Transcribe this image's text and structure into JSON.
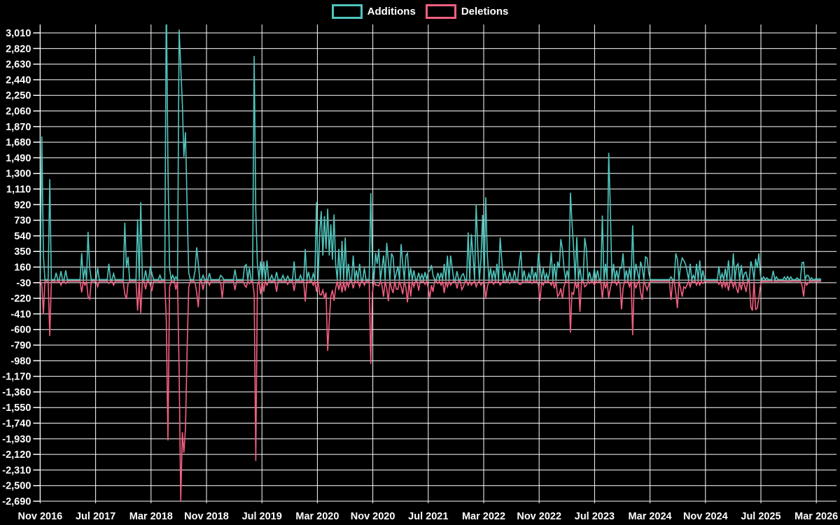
{
  "chart_data": {
    "type": "line",
    "title": "",
    "xlabel": "",
    "ylabel": "",
    "grid": true,
    "background_color": "#000000",
    "grid_color": "#ffffff",
    "zero_line_color": "#9aa5a3",
    "legend_position": "top-center",
    "legend": [
      {
        "label": "Additions",
        "color": "#4FC4BC"
      },
      {
        "label": "Deletions",
        "color": "#F25F80"
      }
    ],
    "ylim": [
      -2690,
      3010
    ],
    "y_tick_step": 190,
    "y_ticks": [
      3010,
      2820,
      2630,
      2440,
      2250,
      2060,
      1870,
      1680,
      1490,
      1300,
      1110,
      920,
      730,
      540,
      350,
      160,
      -30,
      -220,
      -410,
      -600,
      -790,
      -980,
      -1170,
      -1360,
      -1550,
      -1740,
      -1930,
      -2120,
      -2310,
      -2500,
      -2690
    ],
    "x_tick_labels": [
      "Nov 2016",
      "Jul 2017",
      "Mar 2018",
      "Nov 2018",
      "Jul 2019",
      "Mar 2020",
      "Nov 2020",
      "Jul 2021",
      "Mar 2022",
      "Nov 2022",
      "Jul 2023",
      "Mar 2024",
      "Nov 2024",
      "Jul 2025",
      "Mar 2026"
    ],
    "series_unit": "weeks",
    "series": {
      "n_weeks": 490,
      "baseline": {
        "additions": 8,
        "deletions": -12
      },
      "events": [
        [
          1,
          1750,
          -60
        ],
        [
          2,
          300,
          -410
        ],
        [
          6,
          1230,
          -680
        ],
        [
          10,
          90,
          -30
        ],
        [
          13,
          110,
          -60
        ],
        [
          16,
          120,
          -40
        ],
        [
          26,
          330,
          -150
        ],
        [
          28,
          150,
          -60
        ],
        [
          30,
          590,
          -200
        ],
        [
          31,
          150,
          -230
        ],
        [
          36,
          150,
          -80
        ],
        [
          43,
          200,
          -40
        ],
        [
          46,
          80,
          -60
        ],
        [
          53,
          700,
          -170
        ],
        [
          54,
          150,
          -230
        ],
        [
          55,
          285,
          -40
        ],
        [
          61,
          740,
          -370
        ],
        [
          63,
          950,
          -400
        ],
        [
          66,
          120,
          -110
        ],
        [
          69,
          170,
          -60
        ],
        [
          70,
          80,
          -130
        ],
        [
          75,
          60,
          -20
        ],
        [
          79,
          3500,
          -500
        ],
        [
          80,
          1400,
          -1950
        ],
        [
          81,
          150,
          -85
        ],
        [
          83,
          60,
          -25
        ],
        [
          85,
          40,
          -115
        ],
        [
          87,
          3050,
          -1100
        ],
        [
          88,
          2600,
          -2690
        ],
        [
          89,
          2150,
          -1850
        ],
        [
          90,
          1500,
          -2100
        ],
        [
          91,
          1800,
          -1800
        ],
        [
          92,
          900,
          -850
        ],
        [
          93,
          90,
          -85
        ],
        [
          97,
          115,
          -30
        ],
        [
          98,
          400,
          -150
        ],
        [
          99,
          200,
          -330
        ],
        [
          102,
          60,
          -115
        ],
        [
          106,
          85,
          -60
        ],
        [
          113,
          60,
          -25
        ],
        [
          114,
          40,
          -220
        ],
        [
          122,
          130,
          -120
        ],
        [
          128,
          170,
          -60
        ],
        [
          129,
          190,
          -85
        ],
        [
          131,
          150,
          -40
        ],
        [
          134,
          2730,
          -170
        ],
        [
          135,
          850,
          -2200
        ],
        [
          136,
          200,
          -60
        ],
        [
          138,
          230,
          -170
        ],
        [
          140,
          230,
          -140
        ],
        [
          142,
          240,
          -60
        ],
        [
          145,
          60,
          -20
        ],
        [
          148,
          100,
          -140
        ],
        [
          152,
          60,
          -25
        ],
        [
          155,
          50,
          -50
        ],
        [
          159,
          230,
          -130
        ],
        [
          163,
          60,
          -25
        ],
        [
          166,
          380,
          -260
        ],
        [
          168,
          100,
          -30
        ],
        [
          171,
          80,
          -60
        ],
        [
          173,
          950,
          -140
        ],
        [
          175,
          560,
          -170
        ],
        [
          176,
          840,
          -180
        ],
        [
          177,
          300,
          -120
        ],
        [
          178,
          780,
          -220
        ],
        [
          179,
          380,
          -150
        ],
        [
          180,
          870,
          -860
        ],
        [
          181,
          300,
          -500
        ],
        [
          182,
          680,
          -200
        ],
        [
          183,
          250,
          -120
        ],
        [
          184,
          800,
          -250
        ],
        [
          185,
          200,
          -100
        ],
        [
          187,
          380,
          -120
        ],
        [
          189,
          480,
          -150
        ],
        [
          191,
          520,
          -130
        ],
        [
          193,
          200,
          -80
        ],
        [
          196,
          300,
          -100
        ],
        [
          198,
          120,
          -30
        ],
        [
          200,
          200,
          -80
        ],
        [
          203,
          150,
          -60
        ],
        [
          207,
          1060,
          -1020
        ],
        [
          208,
          200,
          -150
        ],
        [
          210,
          330,
          -60
        ],
        [
          211,
          200,
          -60
        ],
        [
          212,
          380,
          -70
        ],
        [
          214,
          140,
          -60
        ],
        [
          215,
          300,
          -200
        ],
        [
          217,
          455,
          -100
        ],
        [
          218,
          230,
          -256
        ],
        [
          220,
          327,
          -100
        ],
        [
          221,
          284,
          -156
        ],
        [
          223,
          85,
          -110
        ],
        [
          224,
          170,
          -110
        ],
        [
          226,
          440,
          -80
        ],
        [
          227,
          200,
          -170
        ],
        [
          229,
          300,
          -90
        ],
        [
          230,
          327,
          -270
        ],
        [
          232,
          150,
          -200
        ],
        [
          234,
          120,
          -80
        ],
        [
          237,
          90,
          -128
        ],
        [
          239,
          70,
          -20
        ],
        [
          241,
          100,
          -50
        ],
        [
          243,
          100,
          -100
        ],
        [
          244,
          120,
          -213
        ],
        [
          245,
          185,
          -60
        ],
        [
          246,
          60,
          -142
        ],
        [
          249,
          90,
          -40
        ],
        [
          251,
          90,
          -60
        ],
        [
          253,
          199,
          -156
        ],
        [
          255,
          298,
          -80
        ],
        [
          257,
          300,
          -60
        ],
        [
          258,
          150,
          -30
        ],
        [
          261,
          110,
          -100
        ],
        [
          264,
          60,
          -115
        ],
        [
          265,
          80,
          -80
        ],
        [
          268,
          582,
          -60
        ],
        [
          270,
          560,
          -60
        ],
        [
          271,
          300,
          -30
        ],
        [
          273,
          920,
          -80
        ],
        [
          274,
          400,
          -30
        ],
        [
          276,
          250,
          -60
        ],
        [
          277,
          795,
          -30
        ],
        [
          279,
          1010,
          -230
        ],
        [
          280,
          300,
          -80
        ],
        [
          282,
          150,
          -30
        ],
        [
          284,
          120,
          -50
        ],
        [
          286,
          200,
          -30
        ],
        [
          288,
          520,
          -60
        ],
        [
          289,
          250,
          -30
        ],
        [
          291,
          120,
          -25
        ],
        [
          294,
          100,
          -40
        ],
        [
          297,
          120,
          -25
        ],
        [
          300,
          200,
          -50
        ],
        [
          301,
          347,
          -50
        ],
        [
          303,
          120,
          -30
        ],
        [
          306,
          80,
          -25
        ],
        [
          308,
          170,
          -40
        ],
        [
          310,
          100,
          -25
        ],
        [
          312,
          327,
          -60
        ],
        [
          313,
          150,
          -250
        ],
        [
          315,
          150,
          -60
        ],
        [
          317,
          80,
          -25
        ],
        [
          319,
          100,
          -30
        ],
        [
          320,
          340,
          -60
        ],
        [
          322,
          200,
          -100
        ],
        [
          324,
          227,
          -200
        ],
        [
          325,
          150,
          -170
        ],
        [
          326,
          500,
          -100
        ],
        [
          327,
          380,
          -227
        ],
        [
          328,
          150,
          -80
        ],
        [
          330,
          120,
          -30
        ],
        [
          332,
          1065,
          -640
        ],
        [
          333,
          710,
          -150
        ],
        [
          334,
          400,
          -170
        ],
        [
          336,
          525,
          -100
        ],
        [
          338,
          150,
          -385
        ],
        [
          341,
          517,
          -80
        ],
        [
          342,
          380,
          -60
        ],
        [
          344,
          100,
          -40
        ],
        [
          347,
          140,
          -60
        ],
        [
          349,
          120,
          -30
        ],
        [
          352,
          787,
          -230
        ],
        [
          354,
          200,
          -100
        ],
        [
          356,
          1550,
          -215
        ],
        [
          357,
          870,
          -100
        ],
        [
          359,
          200,
          -30
        ],
        [
          361,
          120,
          -60
        ],
        [
          363,
          150,
          -30
        ],
        [
          364,
          150,
          -355
        ],
        [
          365,
          327,
          -100
        ],
        [
          367,
          120,
          -30
        ],
        [
          369,
          150,
          -80
        ],
        [
          371,
          667,
          -670
        ],
        [
          373,
          200,
          -100
        ],
        [
          374,
          100,
          -30
        ],
        [
          376,
          227,
          -150
        ],
        [
          377,
          150,
          -240
        ],
        [
          379,
          284,
          -60
        ],
        [
          380,
          270,
          -120
        ],
        [
          381,
          100,
          -60
        ],
        [
          395,
          40,
          -240
        ],
        [
          398,
          327,
          -150
        ],
        [
          399,
          256,
          -340
        ],
        [
          401,
          185,
          -100
        ],
        [
          402,
          270,
          -199
        ],
        [
          403,
          241,
          -80
        ],
        [
          404,
          199,
          -100
        ],
        [
          405,
          114,
          -60
        ],
        [
          407,
          200,
          -80
        ],
        [
          409,
          60,
          -25
        ],
        [
          411,
          200,
          -60
        ],
        [
          413,
          240,
          -60
        ],
        [
          415,
          120,
          -40
        ],
        [
          425,
          170,
          -50
        ],
        [
          427,
          80,
          -85
        ],
        [
          429,
          142,
          -80
        ],
        [
          431,
          241,
          -128
        ],
        [
          434,
          327,
          -85
        ],
        [
          436,
          170,
          -100
        ],
        [
          437,
          199,
          -156
        ],
        [
          439,
          185,
          -120
        ],
        [
          441,
          85,
          -60
        ],
        [
          442,
          100,
          -142
        ],
        [
          445,
          230,
          -327
        ],
        [
          446,
          150,
          -370
        ],
        [
          448,
          261,
          -355
        ],
        [
          449,
          150,
          -340
        ],
        [
          450,
          327,
          -213
        ],
        [
          451,
          60,
          -60
        ],
        [
          453,
          40,
          -15
        ],
        [
          455,
          30,
          -15
        ],
        [
          459,
          114,
          -30
        ],
        [
          461,
          40,
          -15
        ],
        [
          466,
          40,
          -15
        ],
        [
          468,
          45,
          -20
        ],
        [
          470,
          40,
          -15
        ],
        [
          474,
          30,
          -15
        ],
        [
          477,
          213,
          -60
        ],
        [
          478,
          219,
          -199
        ],
        [
          480,
          60,
          -60
        ],
        [
          481,
          57,
          -30
        ],
        [
          483,
          30,
          -15
        ],
        [
          486,
          25,
          -20
        ],
        [
          488,
          20,
          -15
        ]
      ]
    }
  }
}
